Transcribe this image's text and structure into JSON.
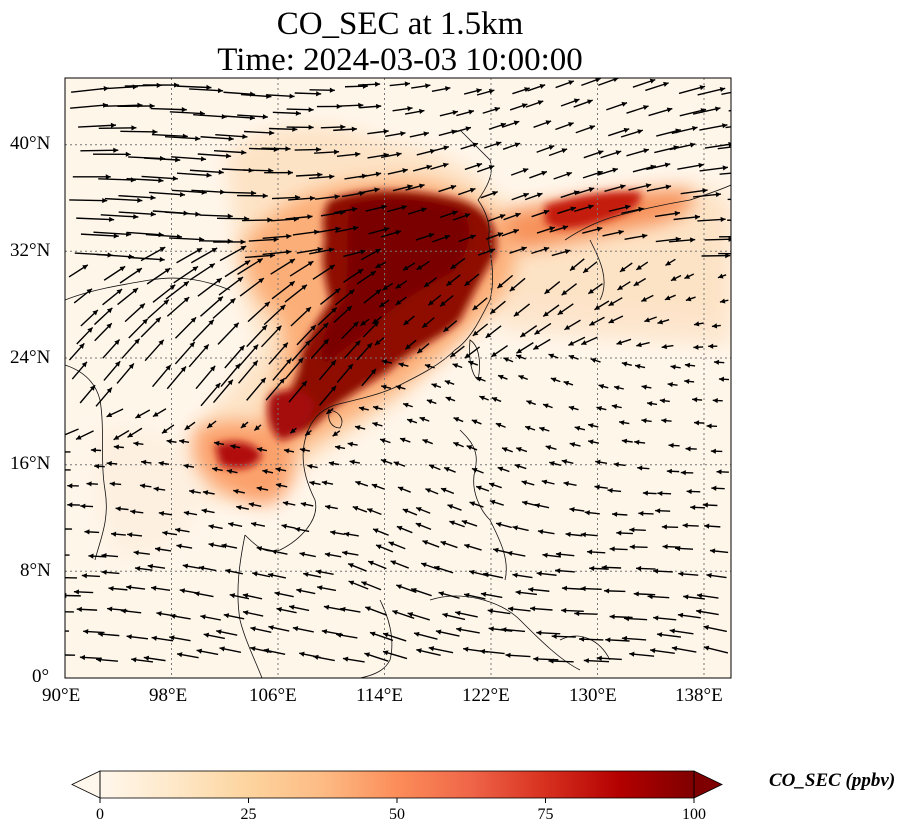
{
  "title": {
    "line1": "CO_SEC at 1.5km",
    "line2": "Time: 2024-03-03 10:00:00"
  },
  "map": {
    "lon_range": [
      90,
      140
    ],
    "lat_range": [
      0,
      45
    ],
    "x_ticks": [
      "90°E",
      "98°E",
      "106°E",
      "114°E",
      "122°E",
      "130°E",
      "138°E"
    ],
    "y_ticks": [
      "0°",
      "8°N",
      "16°N",
      "24°N",
      "32°N",
      "40°N"
    ],
    "gridlines": true
  },
  "colorbar": {
    "label": "CO_SEC (ppbv)",
    "ticks": [
      "0",
      "25",
      "50",
      "75",
      "100"
    ],
    "range": [
      0,
      100
    ],
    "cmap": "OrRd",
    "extend": "both",
    "colors": [
      "#fff7ec",
      "#fee8c8",
      "#fdd49e",
      "#fdbb84",
      "#fc8d59",
      "#ef6548",
      "#d7301f",
      "#b30000",
      "#7f0000"
    ]
  }
}
